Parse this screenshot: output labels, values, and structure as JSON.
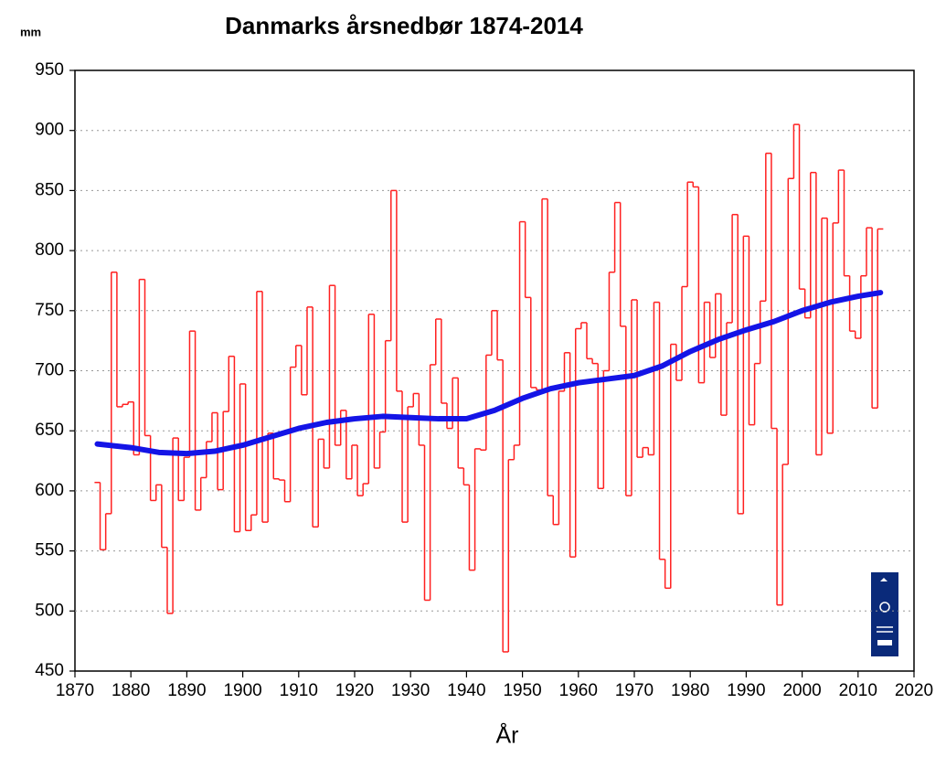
{
  "chart_data": {
    "type": "line",
    "title": "Danmarks årsnedbør 1874-2014",
    "y_unit_label": "mm",
    "x_label": "År",
    "xlim": [
      1870,
      2020
    ],
    "ylim": [
      450,
      950
    ],
    "xticks": [
      1870,
      1880,
      1890,
      1900,
      1910,
      1920,
      1930,
      1940,
      1950,
      1960,
      1970,
      1980,
      1990,
      2000,
      2010,
      2020
    ],
    "yticks": [
      450,
      500,
      550,
      600,
      650,
      700,
      750,
      800,
      850,
      900,
      950
    ],
    "grid": true,
    "series": [
      {
        "color": "#ff2020",
        "step": true,
        "x": [
          1874,
          1875,
          1876,
          1877,
          1878,
          1879,
          1880,
          1881,
          1882,
          1883,
          1884,
          1885,
          1886,
          1887,
          1888,
          1889,
          1890,
          1891,
          1892,
          1893,
          1894,
          1895,
          1896,
          1897,
          1898,
          1899,
          1900,
          1901,
          1902,
          1903,
          1904,
          1905,
          1906,
          1907,
          1908,
          1909,
          1910,
          1911,
          1912,
          1913,
          1914,
          1915,
          1916,
          1917,
          1918,
          1919,
          1920,
          1921,
          1922,
          1923,
          1924,
          1925,
          1926,
          1927,
          1928,
          1929,
          1930,
          1931,
          1932,
          1933,
          1934,
          1935,
          1936,
          1937,
          1938,
          1939,
          1940,
          1941,
          1942,
          1943,
          1944,
          1945,
          1946,
          1947,
          1948,
          1949,
          1950,
          1951,
          1952,
          1953,
          1954,
          1955,
          1956,
          1957,
          1958,
          1959,
          1960,
          1961,
          1962,
          1963,
          1964,
          1965,
          1966,
          1967,
          1968,
          1969,
          1970,
          1971,
          1972,
          1973,
          1974,
          1975,
          1976,
          1977,
          1978,
          1979,
          1980,
          1981,
          1982,
          1983,
          1984,
          1985,
          1986,
          1987,
          1988,
          1989,
          1990,
          1991,
          1992,
          1993,
          1994,
          1995,
          1996,
          1997,
          1998,
          1999,
          2000,
          2001,
          2002,
          2003,
          2004,
          2005,
          2006,
          2007,
          2008,
          2009,
          2010,
          2011,
          2012,
          2013,
          2014
        ],
        "values": [
          607,
          551,
          581,
          782,
          670,
          672,
          674,
          630,
          776,
          646,
          592,
          605,
          553,
          498,
          644,
          592,
          628,
          733,
          584,
          611,
          641,
          665,
          601,
          666,
          712,
          566,
          689,
          567,
          580,
          766,
          574,
          648,
          610,
          609,
          591,
          703,
          721,
          680,
          753,
          570,
          643,
          619,
          771,
          638,
          667,
          610,
          638,
          596,
          606,
          747,
          619,
          649,
          725,
          850,
          683,
          574,
          670,
          681,
          638,
          509,
          705,
          743,
          673,
          652,
          694,
          619,
          605,
          534,
          635,
          634,
          713,
          750,
          709,
          466,
          626,
          638,
          824,
          761,
          686,
          684,
          843,
          596,
          572,
          683,
          715,
          545,
          735,
          740,
          710,
          706,
          602,
          700,
          782,
          840,
          737,
          596,
          759,
          628,
          636,
          630,
          757,
          543,
          519,
          722,
          692,
          770,
          857,
          853,
          690,
          757,
          711,
          764,
          663,
          740,
          830,
          581,
          812,
          655,
          706,
          758,
          881,
          652,
          505,
          622,
          860,
          905,
          768,
          744,
          865,
          630,
          827,
          648,
          823,
          867,
          779,
          733,
          727,
          779,
          819,
          669,
          818
        ]
      },
      {
        "color": "#1414e6",
        "x": [
          1874,
          1880,
          1885,
          1890,
          1895,
          1900,
          1905,
          1910,
          1915,
          1920,
          1925,
          1930,
          1935,
          1940,
          1945,
          1950,
          1955,
          1960,
          1965,
          1970,
          1975,
          1980,
          1985,
          1990,
          1995,
          2000,
          2005,
          2010,
          2014
        ],
        "values": [
          639,
          636,
          632,
          631,
          633,
          638,
          645,
          652,
          657,
          660,
          662,
          661,
          660,
          660,
          667,
          677,
          685,
          690,
          693,
          696,
          704,
          716,
          726,
          734,
          741,
          750,
          757,
          762,
          765
        ]
      }
    ]
  }
}
